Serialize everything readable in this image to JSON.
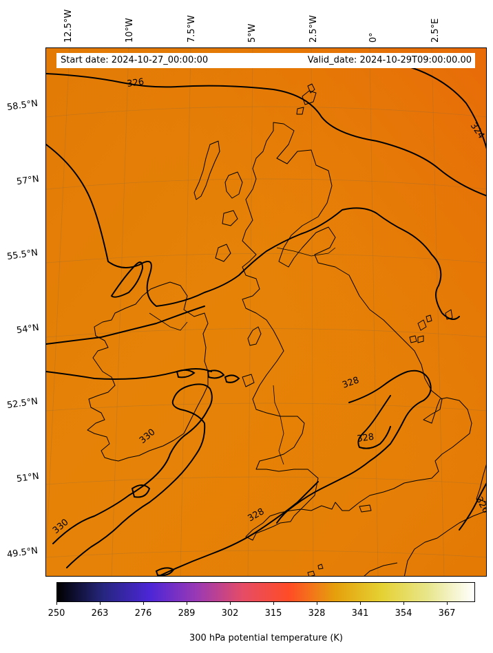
{
  "header": {
    "start_date": "Start date: 2024-10-27_00:00:00",
    "valid_date": "Valid_date: 2024-10-29T09:00:00.00"
  },
  "longitude_labels": [
    "12.5°W",
    "10°W",
    "7.5°W",
    "5°W",
    "2.5°W",
    "0°",
    "2.5°E"
  ],
  "latitude_labels": [
    "58.5°N",
    "57°N",
    "55.5°N",
    "54°N",
    "52.5°N",
    "51°N",
    "49.5°N"
  ],
  "contour_labels": [
    "326",
    "324",
    "328",
    "328",
    "330",
    "330",
    "328",
    "326"
  ],
  "colorbar": {
    "label": "300 hPa potential temperature (K)",
    "ticks": [
      "250",
      "263",
      "276",
      "289",
      "302",
      "315",
      "328",
      "341",
      "354",
      "367"
    ],
    "colormap": "CMRmap",
    "colors": [
      "#000000",
      "#26267f",
      "#4c26d6",
      "#9939b5",
      "#e54c66",
      "#ff4c26",
      "#e5a00c",
      "#e5d133",
      "#e8e68c",
      "#ffffff"
    ]
  },
  "map": {
    "field_color": "#e47f05",
    "contour_color": "#000000",
    "coastline_color": "#000000"
  }
}
